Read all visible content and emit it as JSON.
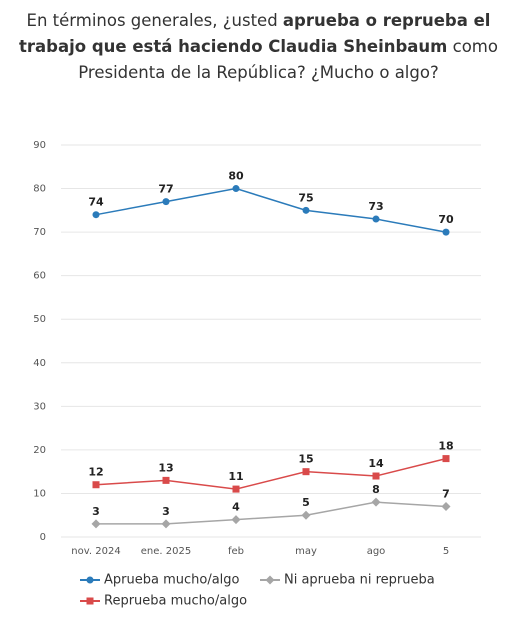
{
  "chart_data": {
    "type": "line",
    "title": [
      "En términos generales, ¿usted ",
      "aprueba o reprueba el trabajo que está haciendo Claudia Sheinbaum",
      " como Presidenta de la República? ¿Mucho o algo?"
    ],
    "title_bold": [
      false,
      true,
      false
    ],
    "categories": [
      "nov. 2024",
      "ene. 2025",
      "feb",
      "may",
      "ago",
      "5"
    ],
    "series": [
      {
        "name": "Aprueba mucho/algo",
        "color": "#2b7bba",
        "marker": "circle",
        "values": [
          74,
          77,
          80,
          75,
          73,
          70
        ]
      },
      {
        "name": "Ni aprueba ni reprueba",
        "color": "#a6a6a6",
        "marker": "diamond",
        "values": [
          3,
          3,
          4,
          5,
          8,
          7
        ]
      },
      {
        "name": "Reprueba mucho/algo",
        "color": "#d94a4a",
        "marker": "square",
        "values": [
          12,
          13,
          11,
          15,
          14,
          18
        ]
      }
    ],
    "ylim": [
      0,
      90
    ],
    "yticks": [
      0,
      10,
      20,
      30,
      40,
      50,
      60,
      70,
      80,
      90
    ],
    "grid": true,
    "legend": "bottom"
  }
}
